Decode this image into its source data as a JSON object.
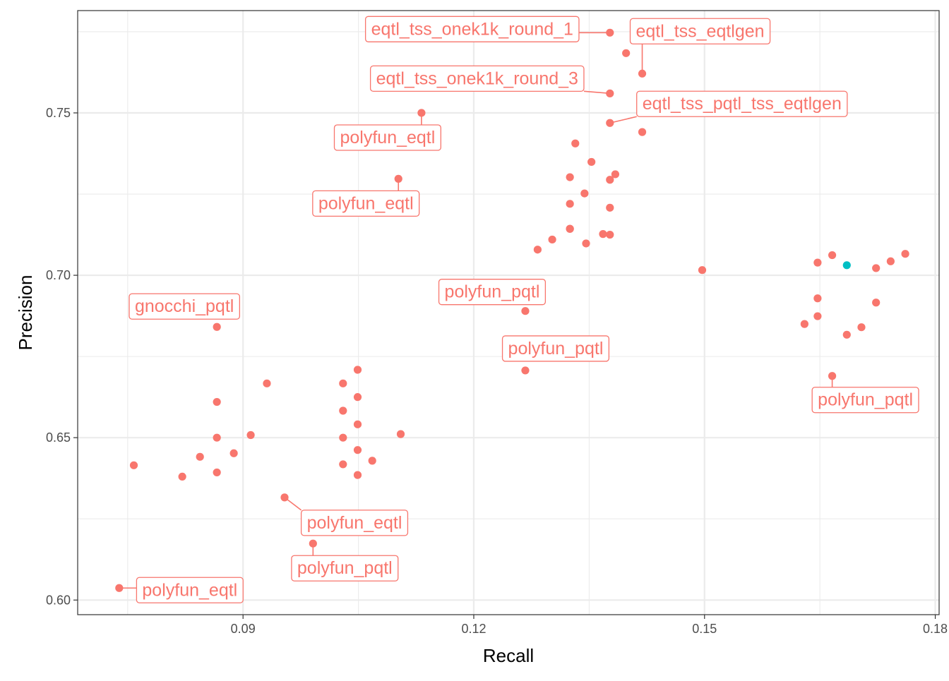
{
  "chart_data": {
    "type": "scatter",
    "title": "",
    "xlabel": "Recall",
    "ylabel": "Precision",
    "xlim": [
      0.0685,
      0.1805
    ],
    "ylim": [
      0.5955,
      0.7815
    ],
    "x_ticks": [
      0.09,
      0.12,
      0.15,
      0.18
    ],
    "x_tick_labels": [
      "0.09",
      "0.12",
      "0.15",
      "0.18"
    ],
    "y_ticks": [
      0.6,
      0.65,
      0.7,
      0.75
    ],
    "y_tick_labels": [
      "0.60",
      "0.65",
      "0.70",
      "0.75"
    ],
    "grid": true,
    "legend": "none",
    "colors": {
      "primary": "#f8766d",
      "highlight": "#00bfc4",
      "grid": "#ebebeb",
      "border": "#333333"
    },
    "series": [
      {
        "color": "#f8766d",
        "points": [
          {
            "x": 0.1377,
            "y": 0.7747,
            "label": "eqtl_tss_onek1k_round_1"
          },
          {
            "x": 0.1398,
            "y": 0.7684
          },
          {
            "x": 0.1419,
            "y": 0.7621,
            "label": "eqtl_tss_eqtlgen"
          },
          {
            "x": 0.1377,
            "y": 0.756,
            "label": "eqtl_tss_onek1k_round_3"
          },
          {
            "x": 0.1377,
            "y": 0.7469,
            "label": "eqtl_tss_pqtl_tss_eqtlgen"
          },
          {
            "x": 0.1419,
            "y": 0.7441
          },
          {
            "x": 0.1132,
            "y": 0.75,
            "label": "polyfun_eqtl"
          },
          {
            "x": 0.1332,
            "y": 0.7406
          },
          {
            "x": 0.1353,
            "y": 0.7349
          },
          {
            "x": 0.1384,
            "y": 0.7311
          },
          {
            "x": 0.1325,
            "y": 0.7302
          },
          {
            "x": 0.1377,
            "y": 0.7294
          },
          {
            "x": 0.1102,
            "y": 0.7297,
            "label": "polyfun_eqtl"
          },
          {
            "x": 0.1344,
            "y": 0.7252
          },
          {
            "x": 0.1325,
            "y": 0.722
          },
          {
            "x": 0.1377,
            "y": 0.7208
          },
          {
            "x": 0.1325,
            "y": 0.7143
          },
          {
            "x": 0.1325,
            "y": 0.7143
          },
          {
            "x": 0.1368,
            "y": 0.7127
          },
          {
            "x": 0.1377,
            "y": 0.7125
          },
          {
            "x": 0.1302,
            "y": 0.711
          },
          {
            "x": 0.1346,
            "y": 0.7098
          },
          {
            "x": 0.1283,
            "y": 0.7079
          },
          {
            "x": 0.1497,
            "y": 0.7016
          },
          {
            "x": 0.1761,
            "y": 0.7066
          },
          {
            "x": 0.1666,
            "y": 0.7062
          },
          {
            "x": 0.1742,
            "y": 0.7043
          },
          {
            "x": 0.1647,
            "y": 0.7039
          },
          {
            "x": 0.1723,
            "y": 0.7022
          },
          {
            "x": 0.1267,
            "y": 0.689,
            "label": "polyfun_pqtl"
          },
          {
            "x": 0.1647,
            "y": 0.6929
          },
          {
            "x": 0.1723,
            "y": 0.6916
          },
          {
            "x": 0.1647,
            "y": 0.6874
          },
          {
            "x": 0.163,
            "y": 0.685
          },
          {
            "x": 0.1704,
            "y": 0.684
          },
          {
            "x": 0.1685,
            "y": 0.6817
          },
          {
            "x": 0.1666,
            "y": 0.669,
            "label": "polyfun_pqtl"
          },
          {
            "x": 0.0866,
            "y": 0.6841,
            "label": "gnocchi_pqtl"
          },
          {
            "x": 0.1267,
            "y": 0.6707,
            "label": "polyfun_pqtl"
          },
          {
            "x": 0.1049,
            "y": 0.6709
          },
          {
            "x": 0.0931,
            "y": 0.6667
          },
          {
            "x": 0.103,
            "y": 0.6667
          },
          {
            "x": 0.1049,
            "y": 0.6625
          },
          {
            "x": 0.0866,
            "y": 0.661
          },
          {
            "x": 0.103,
            "y": 0.6583
          },
          {
            "x": 0.1049,
            "y": 0.6541
          },
          {
            "x": 0.1105,
            "y": 0.6511
          },
          {
            "x": 0.091,
            "y": 0.6508
          },
          {
            "x": 0.0866,
            "y": 0.65
          },
          {
            "x": 0.103,
            "y": 0.65
          },
          {
            "x": 0.1049,
            "y": 0.6462
          },
          {
            "x": 0.0888,
            "y": 0.6452
          },
          {
            "x": 0.0844,
            "y": 0.6441
          },
          {
            "x": 0.1068,
            "y": 0.6429
          },
          {
            "x": 0.103,
            "y": 0.6418
          },
          {
            "x": 0.0758,
            "y": 0.6415
          },
          {
            "x": 0.0866,
            "y": 0.6393
          },
          {
            "x": 0.1049,
            "y": 0.6385
          },
          {
            "x": 0.0821,
            "y": 0.638
          },
          {
            "x": 0.0954,
            "y": 0.6316,
            "label": "polyfun_eqtl"
          },
          {
            "x": 0.0991,
            "y": 0.6174,
            "label": "polyfun_pqtl"
          },
          {
            "x": 0.0739,
            "y": 0.6037,
            "label": "polyfun_eqtl"
          }
        ]
      },
      {
        "color": "#00bfc4",
        "points": [
          {
            "x": 0.1685,
            "y": 0.7031
          }
        ]
      }
    ]
  }
}
